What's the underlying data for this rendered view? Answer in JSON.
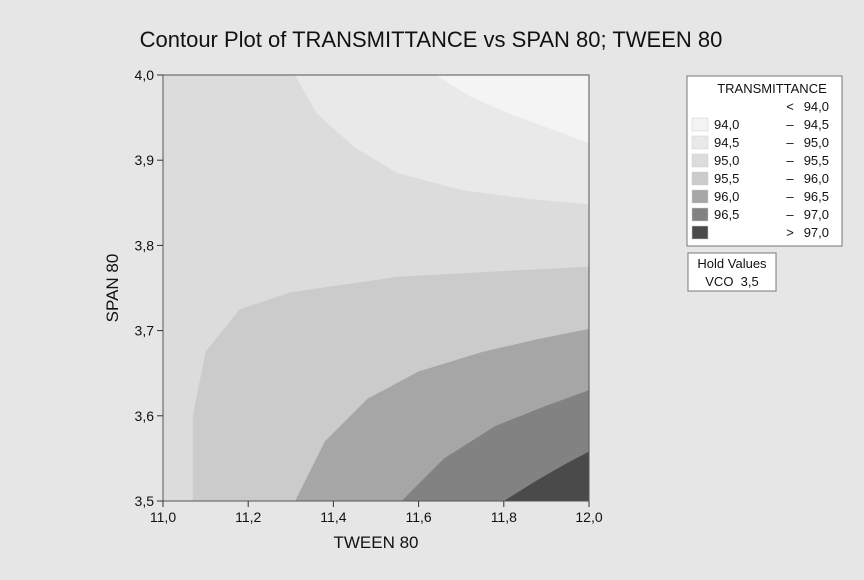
{
  "chart_data": {
    "type": "contour",
    "title": "Contour Plot of TRANSMITTANCE vs SPAN 80; TWEEN 80",
    "xlabel": "TWEEN 80",
    "ylabel": "SPAN 80",
    "xlim": [
      11.0,
      12.0
    ],
    "ylim": [
      3.5,
      4.0
    ],
    "x_ticks": [
      "11,0",
      "11,2",
      "11,4",
      "11,6",
      "11,8",
      "12,0"
    ],
    "y_ticks": [
      "3,5",
      "3,6",
      "3,7",
      "3,8",
      "3,9",
      "4,0"
    ],
    "x_tick_values": [
      11.0,
      11.2,
      11.4,
      11.6,
      11.8,
      12.0
    ],
    "y_tick_values": [
      3.5,
      3.6,
      3.7,
      3.8,
      3.9,
      4.0
    ],
    "legend": {
      "title": "TRANSMITTANCE",
      "placement": "right",
      "levels": [
        {
          "low": "",
          "sep": "<",
          "high": "94,0",
          "color": "#ffffff"
        },
        {
          "low": "94,0",
          "sep": "–",
          "high": "94,5",
          "color": "#f4f4f4"
        },
        {
          "low": "94,5",
          "sep": "–",
          "high": "95,0",
          "color": "#e9e9e9"
        },
        {
          "low": "95,0",
          "sep": "–",
          "high": "95,5",
          "color": "#dcdcdc"
        },
        {
          "low": "95,5",
          "sep": "–",
          "high": "96,0",
          "color": "#cbcbcb"
        },
        {
          "low": "96,0",
          "sep": "–",
          "high": "96,5",
          "color": "#a6a6a6"
        },
        {
          "low": "96,5",
          "sep": "–",
          "high": "97,0",
          "color": "#828282"
        },
        {
          "low": "",
          "sep": ">",
          "high": "97,0",
          "color": "#4a4a4a"
        }
      ]
    },
    "hold_values": {
      "title": "Hold Values",
      "text": "VCO  3,5"
    },
    "regions": [
      {
        "level": "94,0–94,5",
        "color": "#f4f4f4",
        "boundary": [
          [
            11.64,
            4.0
          ],
          [
            11.72,
            3.975
          ],
          [
            11.82,
            3.953
          ],
          [
            11.92,
            3.935
          ],
          [
            12.0,
            3.92
          ]
        ]
      },
      {
        "level": "94,5–95,0",
        "color": "#e9e9e9",
        "boundary": [
          [
            11.31,
            4.0
          ],
          [
            11.36,
            3.955
          ],
          [
            11.45,
            3.915
          ],
          [
            11.55,
            3.885
          ],
          [
            11.7,
            3.865
          ],
          [
            11.85,
            3.855
          ],
          [
            12.0,
            3.848
          ]
        ]
      },
      {
        "level": "95,0–95,5",
        "color": "#dcdcdc",
        "boundary": [
          [
            11.0,
            3.848
          ]
        ]
      },
      {
        "level": "95,5–96,0",
        "color": "#cbcbcb",
        "boundary": [
          [
            11.07,
            3.5
          ],
          [
            11.07,
            3.6
          ],
          [
            11.1,
            3.675
          ],
          [
            11.18,
            3.725
          ],
          [
            11.3,
            3.745
          ],
          [
            11.55,
            3.763
          ],
          [
            11.8,
            3.77
          ],
          [
            12.0,
            3.775
          ]
        ]
      },
      {
        "level": "96,0–96,5",
        "color": "#a6a6a6",
        "boundary": [
          [
            11.31,
            3.5
          ],
          [
            11.38,
            3.57
          ],
          [
            11.48,
            3.62
          ],
          [
            11.6,
            3.652
          ],
          [
            11.75,
            3.675
          ],
          [
            11.88,
            3.69
          ],
          [
            12.0,
            3.702
          ]
        ]
      },
      {
        "level": "96,5–97,0",
        "color": "#828282",
        "boundary": [
          [
            11.56,
            3.5
          ],
          [
            11.66,
            3.55
          ],
          [
            11.78,
            3.588
          ],
          [
            11.9,
            3.612
          ],
          [
            12.0,
            3.63
          ]
        ]
      },
      {
        "level": "> 97,0",
        "color": "#4a4a4a",
        "boundary": [
          [
            11.8,
            3.5
          ],
          [
            11.88,
            3.525
          ],
          [
            11.95,
            3.545
          ],
          [
            12.0,
            3.558
          ]
        ]
      }
    ]
  }
}
